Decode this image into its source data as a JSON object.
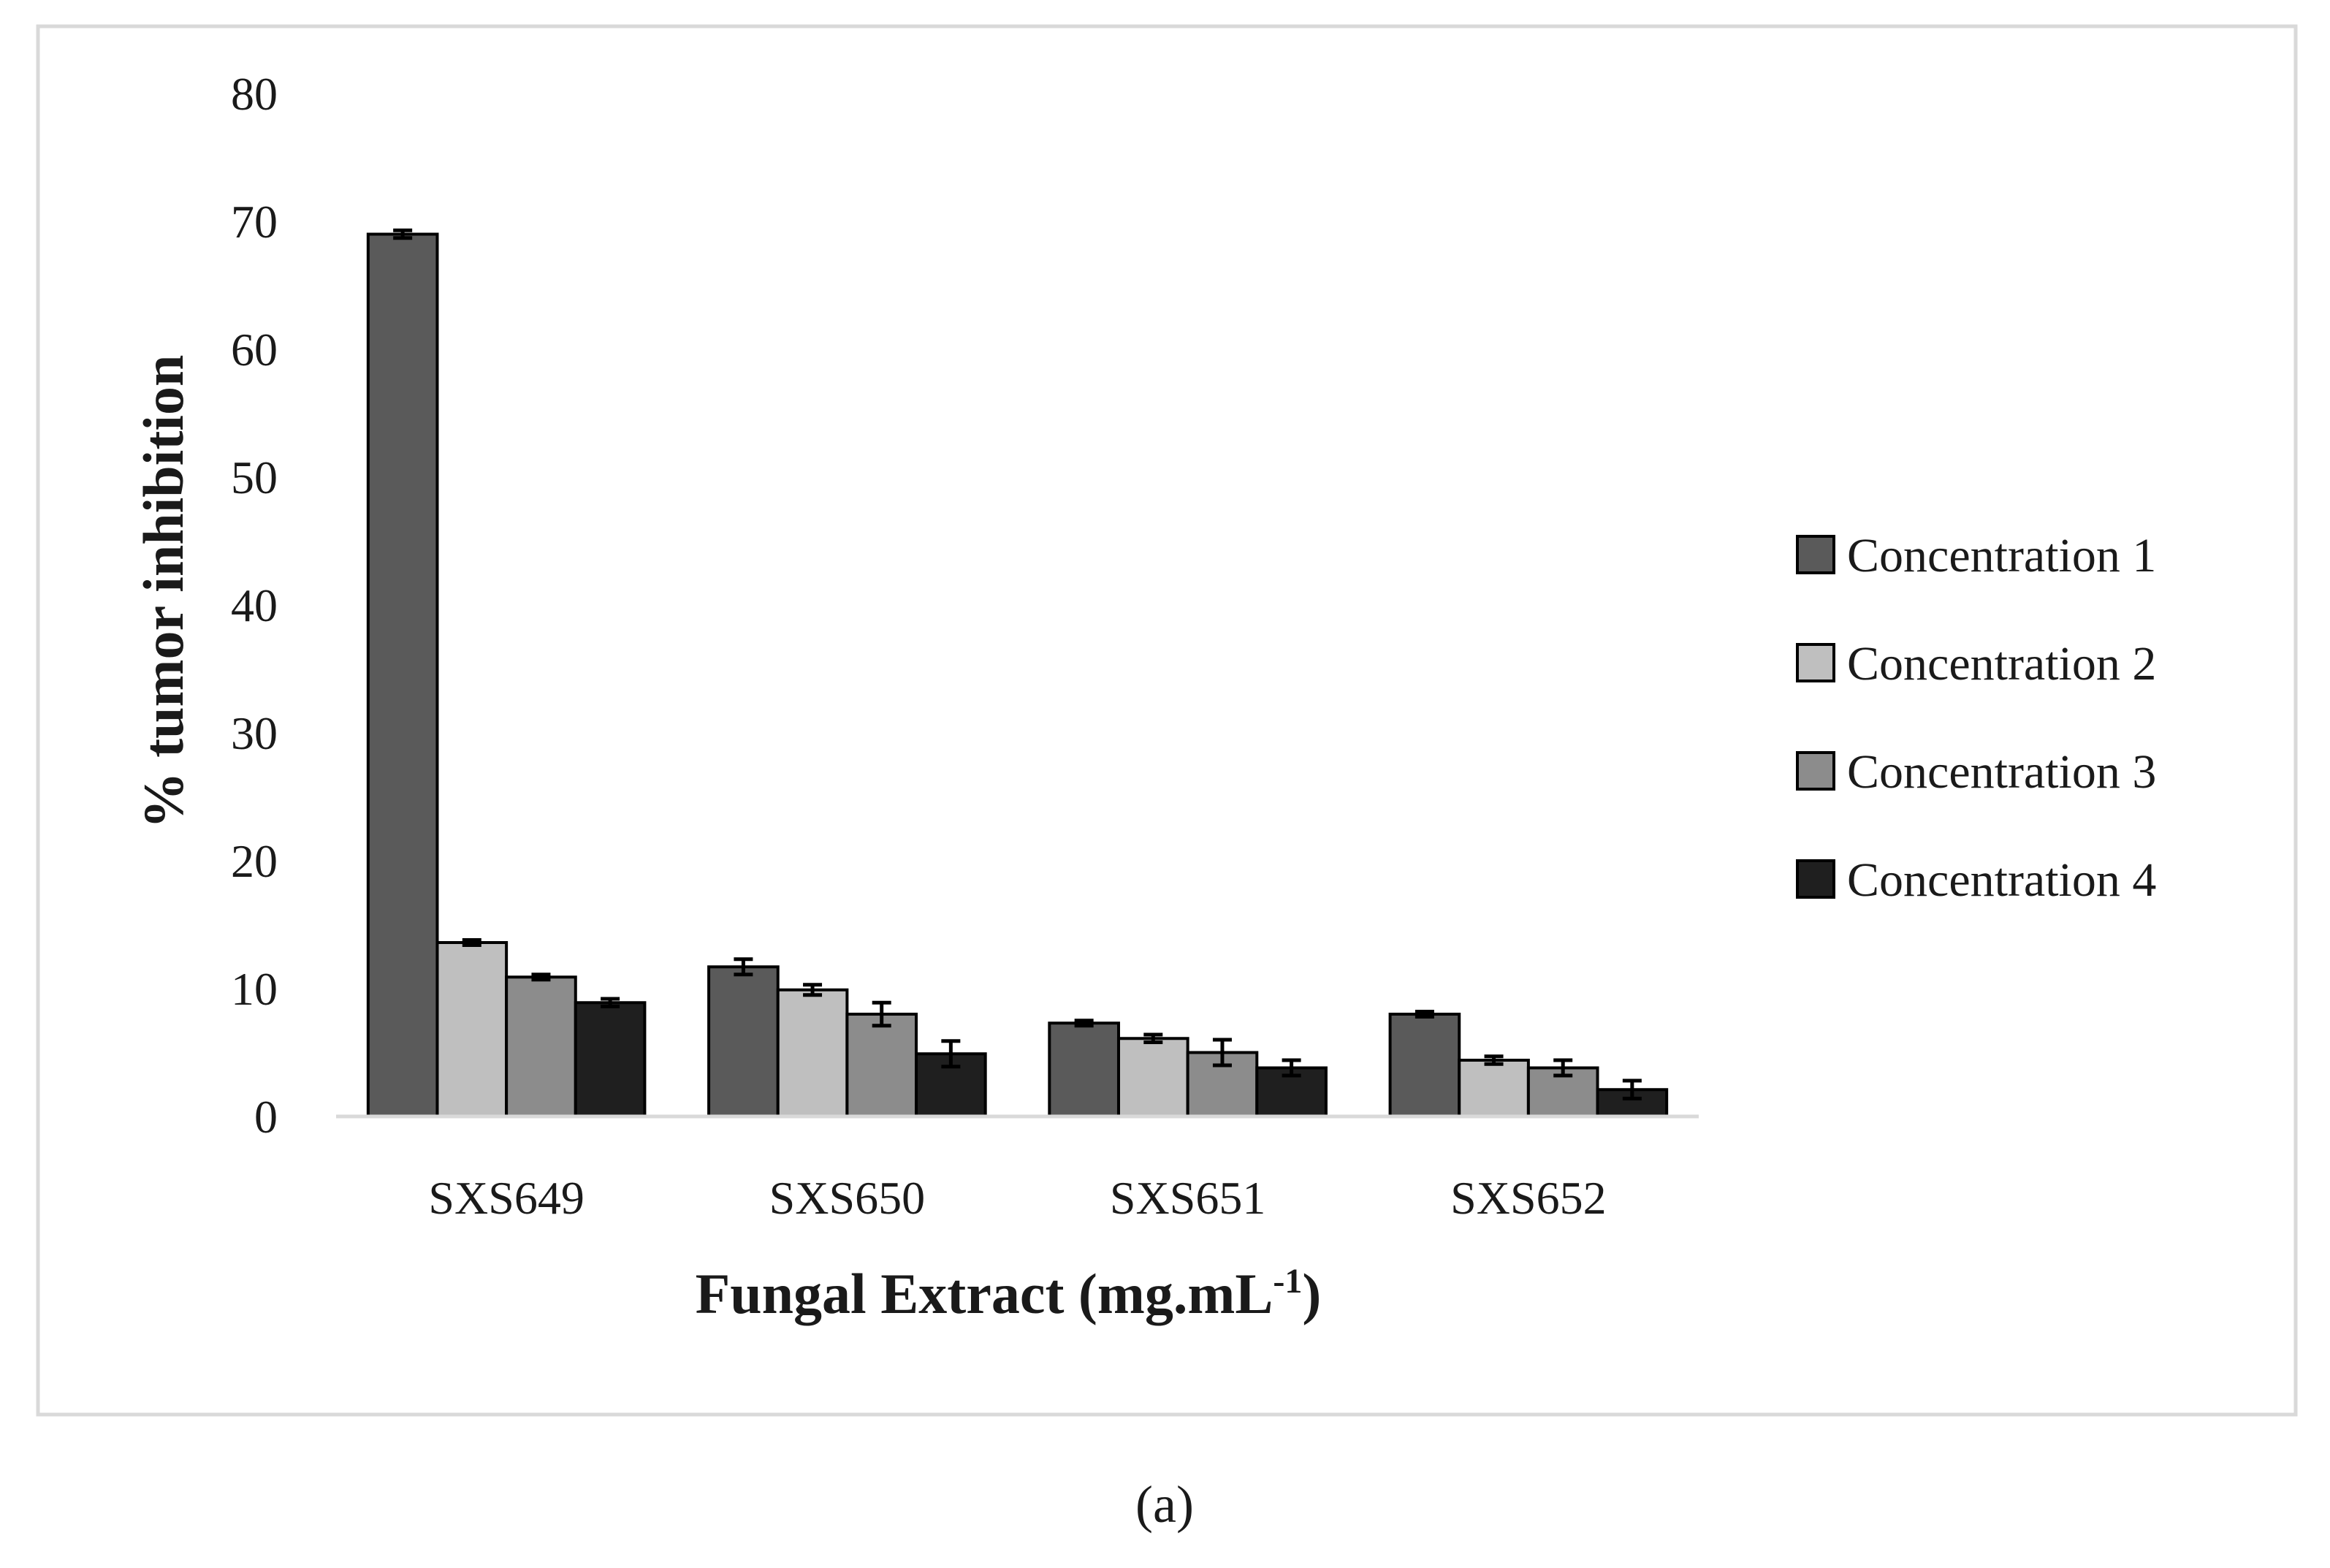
{
  "chart_data": {
    "type": "bar",
    "title": "",
    "xlabel": "Fungal Extract (mg.mL",
    "xlabel_superscript": "-1",
    "xlabel_suffix": ")",
    "ylabel": "% tumor inhibition",
    "ylim": [
      0,
      80
    ],
    "yticks": [
      0,
      10,
      20,
      30,
      40,
      50,
      60,
      70,
      80
    ],
    "grid": false,
    "legend_position": "right",
    "categories": [
      "SXS649",
      "SXS650",
      "SXS651",
      "SXS652"
    ],
    "series": [
      {
        "name": "Concentration 1",
        "color": "#5a5a5a",
        "values": [
          69.0,
          11.7,
          7.3,
          8.0
        ],
        "errors": [
          0.3,
          0.6,
          0.2,
          0.2
        ]
      },
      {
        "name": "Concentration 2",
        "color": "#bfbfbf",
        "values": [
          13.6,
          9.9,
          6.1,
          4.4
        ],
        "errors": [
          0.2,
          0.4,
          0.3,
          0.3
        ]
      },
      {
        "name": "Concentration 3",
        "color": "#8c8c8c",
        "values": [
          10.9,
          8.0,
          5.0,
          3.8
        ],
        "errors": [
          0.2,
          0.9,
          1.0,
          0.6
        ]
      },
      {
        "name": "Concentration 4",
        "color": "#1f1f1f",
        "values": [
          8.9,
          4.9,
          3.8,
          2.1
        ],
        "errors": [
          0.3,
          1.0,
          0.6,
          0.7
        ]
      }
    ],
    "panel_label": "(a)"
  }
}
